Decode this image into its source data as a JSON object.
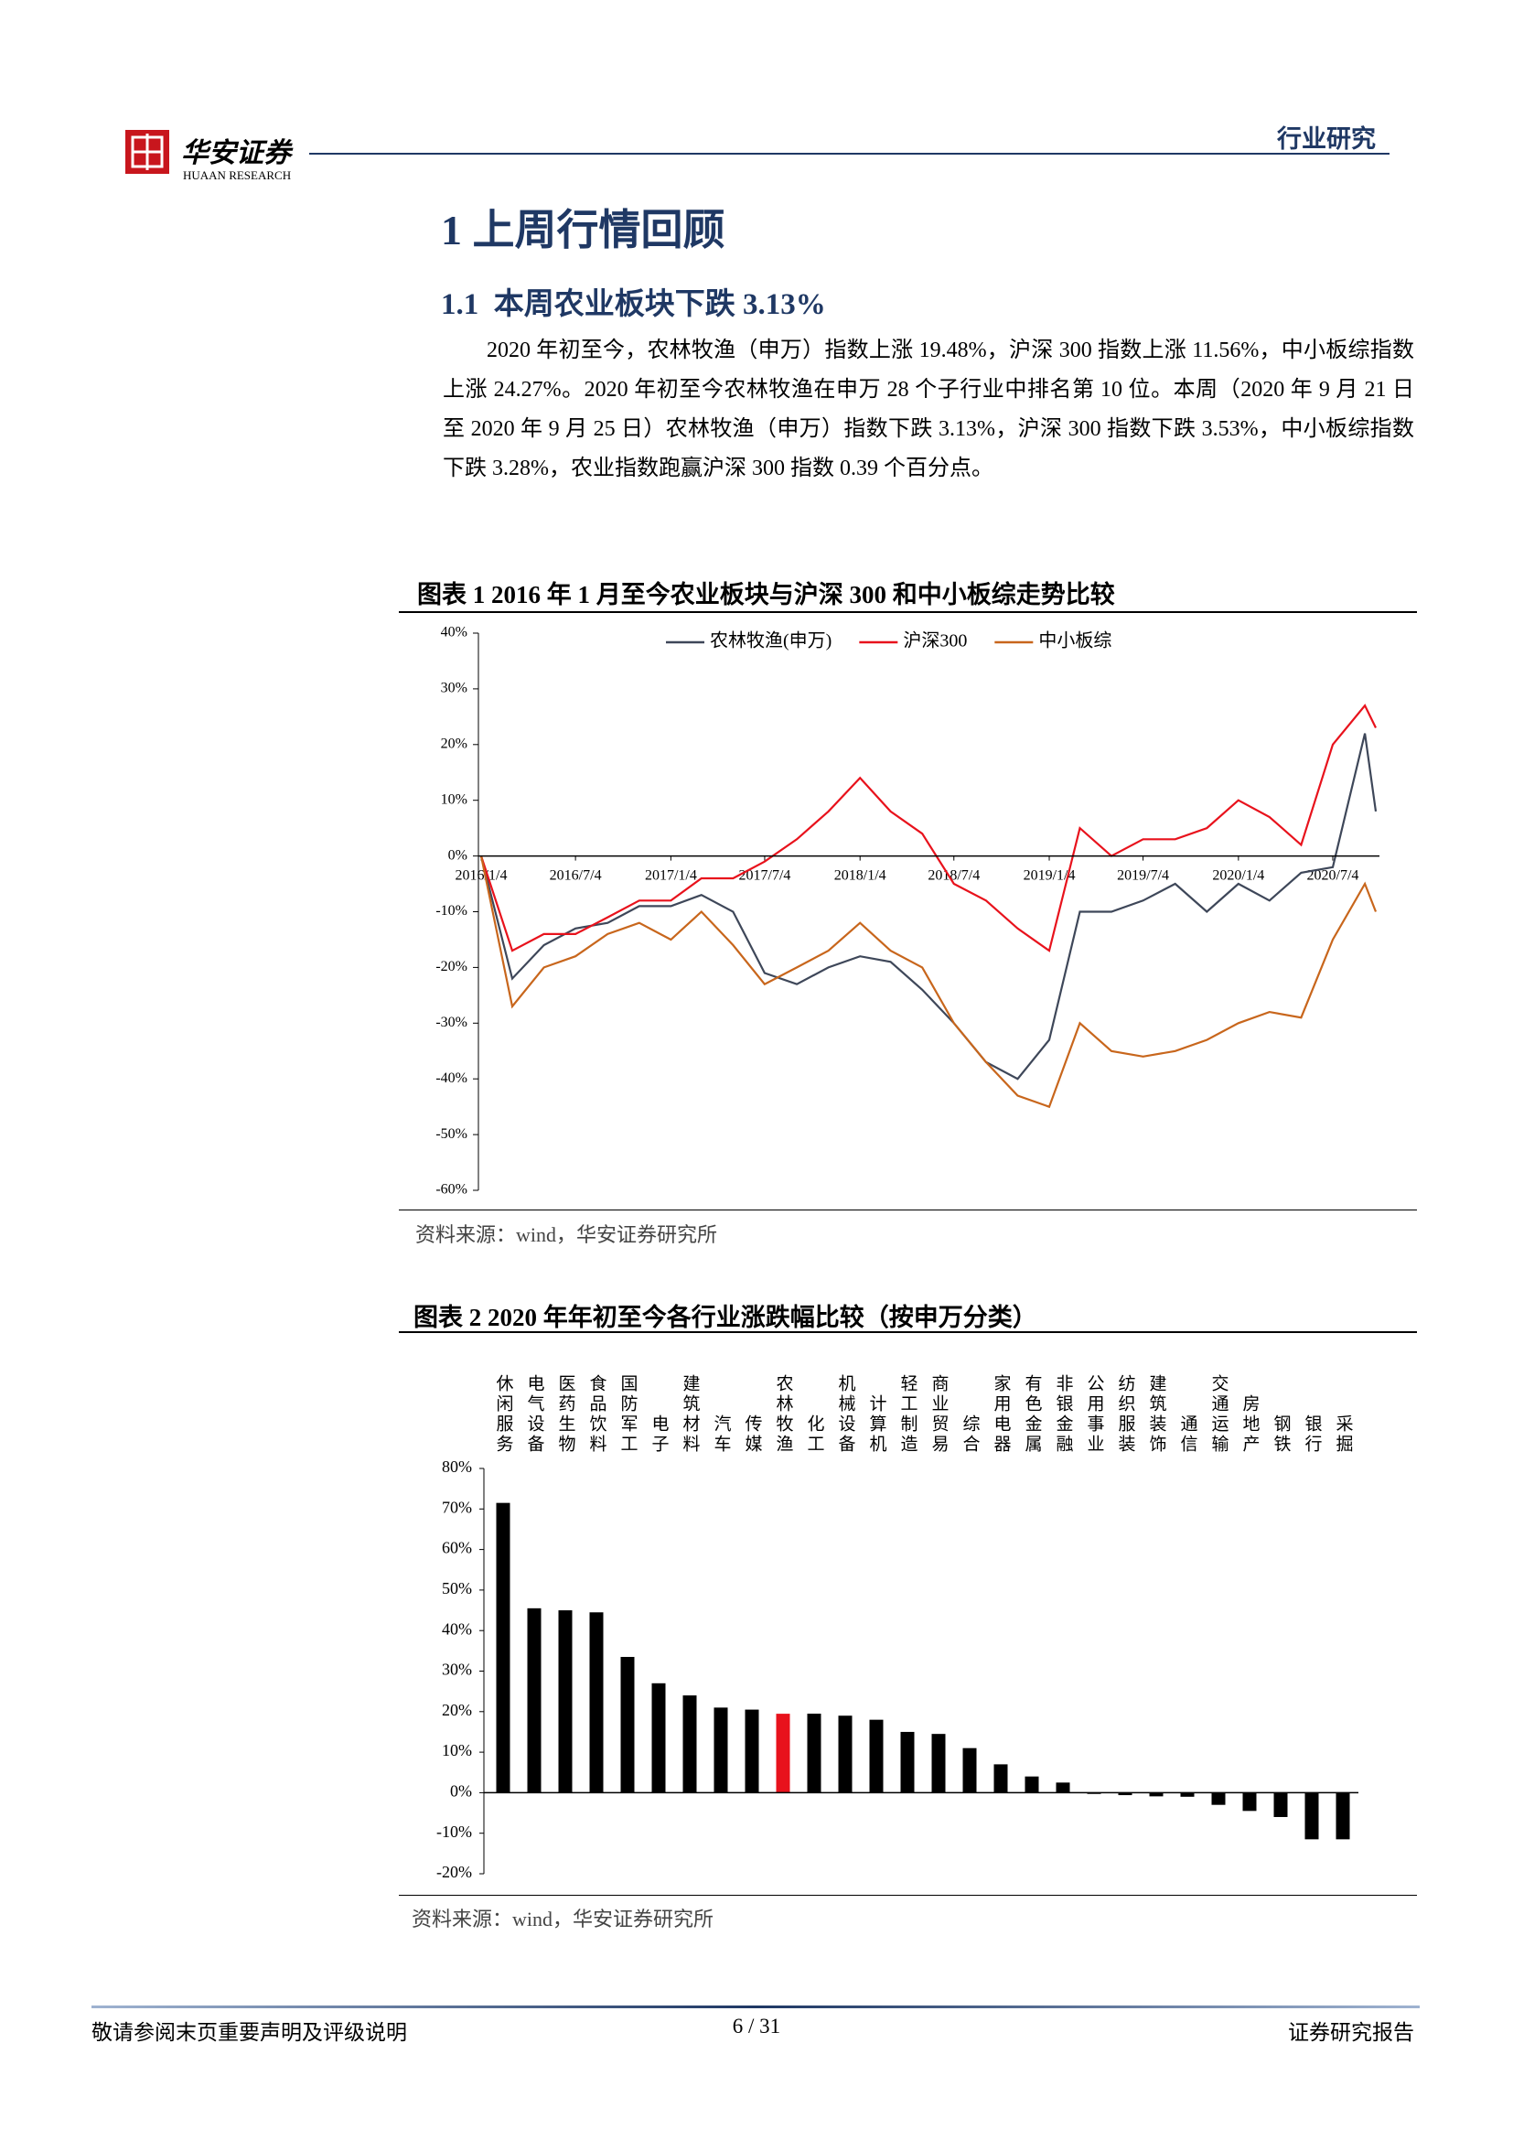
{
  "header": {
    "brand": "华安证券",
    "brand_en": "HUAAN RESEARCH",
    "category": "行业研究"
  },
  "heading": "1 上周行情回顾",
  "subheading": "1.1  本周农业板块下跌 3.13%",
  "paragraph": "2020 年初至今，农林牧渔（申万）指数上涨 19.48%，沪深 300 指数上涨 11.56%，中小板综指数上涨 24.27%。2020 年初至今农林牧渔在申万 28 个子行业中排名第 10 位。本周（2020 年 9 月 21 日至 2020 年 9 月 25 日）农林牧渔（申万）指数下跌 3.13%，沪深 300 指数下跌 3.53%，中小板综指数下跌 3.28%，农业指数跑赢沪深 300 指数 0.39 个百分点。",
  "footer": {
    "left": "敬请参阅末页重要声明及评级说明",
    "page": "6 / 31",
    "right": "证券研究报告"
  },
  "chart_data": [
    {
      "type": "line",
      "title": "图表 1 2016 年 1 月至今农业板块与沪深 300 和中小板综走势比较",
      "source": "资料来源：wind，华安证券研究所",
      "x": [
        "2016/1/4",
        "2016/3/4",
        "2016/5/4",
        "2016/7/4",
        "2016/9/4",
        "2016/11/4",
        "2017/1/4",
        "2017/3/4",
        "2017/5/4",
        "2017/7/4",
        "2017/9/4",
        "2017/11/4",
        "2018/1/4",
        "2018/3/4",
        "2018/5/4",
        "2018/7/4",
        "2018/9/4",
        "2018/11/4",
        "2019/1/4",
        "2019/3/4",
        "2019/5/4",
        "2019/7/4",
        "2019/9/4",
        "2019/11/4",
        "2020/1/4",
        "2020/3/4",
        "2020/5/4",
        "2020/7/4",
        "2020/9/4",
        "2020/9/25"
      ],
      "xlim": [
        "2016/1/4",
        "2020/9/25"
      ],
      "xticks": [
        "2016/1/4",
        "2016/7/4",
        "2017/1/4",
        "2017/7/4",
        "2018/1/4",
        "2018/7/4",
        "2019/1/4",
        "2019/7/4",
        "2020/1/4",
        "2020/7/4"
      ],
      "ylim": [
        -60,
        40
      ],
      "yticks": [
        {
          "value": -60,
          "label": "-60%"
        },
        {
          "value": -50,
          "label": "-50%"
        },
        {
          "value": -40,
          "label": "-40%"
        },
        {
          "value": -30,
          "label": "-30%"
        },
        {
          "value": -20,
          "label": "-20%"
        },
        {
          "value": -10,
          "label": "-10%"
        },
        {
          "value": 0,
          "label": "0%"
        },
        {
          "value": 10,
          "label": "10%"
        },
        {
          "value": 20,
          "label": "20%"
        },
        {
          "value": 30,
          "label": "30%"
        },
        {
          "value": 40,
          "label": "40%"
        }
      ],
      "legend": "top",
      "series": [
        {
          "name": "农林牧渔(申万)",
          "color": "#3e4759",
          "values": [
            0,
            -22,
            -16,
            -13,
            -12,
            -9,
            -9,
            -7,
            -10,
            -21,
            -23,
            -20,
            -18,
            -19,
            -24,
            -30,
            -37,
            -40,
            -33,
            -10,
            -10,
            -8,
            -5,
            -10,
            -5,
            -8,
            -3,
            -2,
            22,
            8
          ]
        },
        {
          "name": "沪深300",
          "color": "#e8121c",
          "values": [
            0,
            -17,
            -14,
            -14,
            -11,
            -8,
            -8,
            -4,
            -4,
            -1,
            3,
            8,
            14,
            8,
            4,
            -5,
            -8,
            -13,
            -17,
            5,
            0,
            3,
            3,
            5,
            10,
            7,
            2,
            20,
            27,
            23
          ]
        },
        {
          "name": "中小板综",
          "color": "#c8661c",
          "values": [
            0,
            -27,
            -20,
            -18,
            -14,
            -12,
            -15,
            -10,
            -16,
            -23,
            -20,
            -17,
            -12,
            -17,
            -20,
            -30,
            -37,
            -43,
            -45,
            -30,
            -35,
            -36,
            -35,
            -33,
            -30,
            -28,
            -29,
            -15,
            -5,
            -10
          ]
        }
      ]
    },
    {
      "type": "bar",
      "title": "图表 2 2020 年年初至今各行业涨跌幅比较（按申万分类）",
      "source": "资料来源：wind，华安证券研究所",
      "categories": [
        "休闲服务",
        "电气设备",
        "医药生物",
        "食品饮料",
        "国防军工",
        "电子",
        "建筑材料",
        "汽车",
        "传媒",
        "农林牧渔",
        "化工",
        "机械设备",
        "计算机",
        "轻工制造",
        "商业贸易",
        "综合",
        "家用电器",
        "有色金属",
        "非银金融",
        "公用事业",
        "纺织服装",
        "建筑装饰",
        "通信",
        "交通运输",
        "房地产",
        "钢铁",
        "银行",
        "采掘"
      ],
      "values": [
        71.5,
        45.5,
        45,
        44.5,
        33.5,
        27,
        24,
        21,
        20.5,
        19.48,
        19.5,
        19,
        18,
        15,
        14.5,
        11,
        7,
        4,
        2.5,
        -0.3,
        -0.6,
        -0.9,
        -1,
        -3,
        -4.5,
        -6,
        -11.5,
        -11.5
      ],
      "colors": [
        "#000000",
        "#000000",
        "#000000",
        "#000000",
        "#000000",
        "#000000",
        "#000000",
        "#000000",
        "#000000",
        "#e8121c",
        "#000000",
        "#000000",
        "#000000",
        "#000000",
        "#000000",
        "#000000",
        "#000000",
        "#000000",
        "#000000",
        "#000000",
        "#000000",
        "#000000",
        "#000000",
        "#000000",
        "#000000",
        "#000000",
        "#000000",
        "#000000"
      ],
      "ylim": [
        -20,
        80
      ],
      "yticks": [
        {
          "value": -20,
          "label": "-20%"
        },
        {
          "value": -10,
          "label": "-10%"
        },
        {
          "value": 0,
          "label": "0%"
        },
        {
          "value": 10,
          "label": "10%"
        },
        {
          "value": 20,
          "label": "20%"
        },
        {
          "value": 30,
          "label": "30%"
        },
        {
          "value": 40,
          "label": "40%"
        },
        {
          "value": 50,
          "label": "50%"
        },
        {
          "value": 60,
          "label": "60%"
        },
        {
          "value": 70,
          "label": "70%"
        },
        {
          "value": 80,
          "label": "80%"
        }
      ]
    }
  ]
}
